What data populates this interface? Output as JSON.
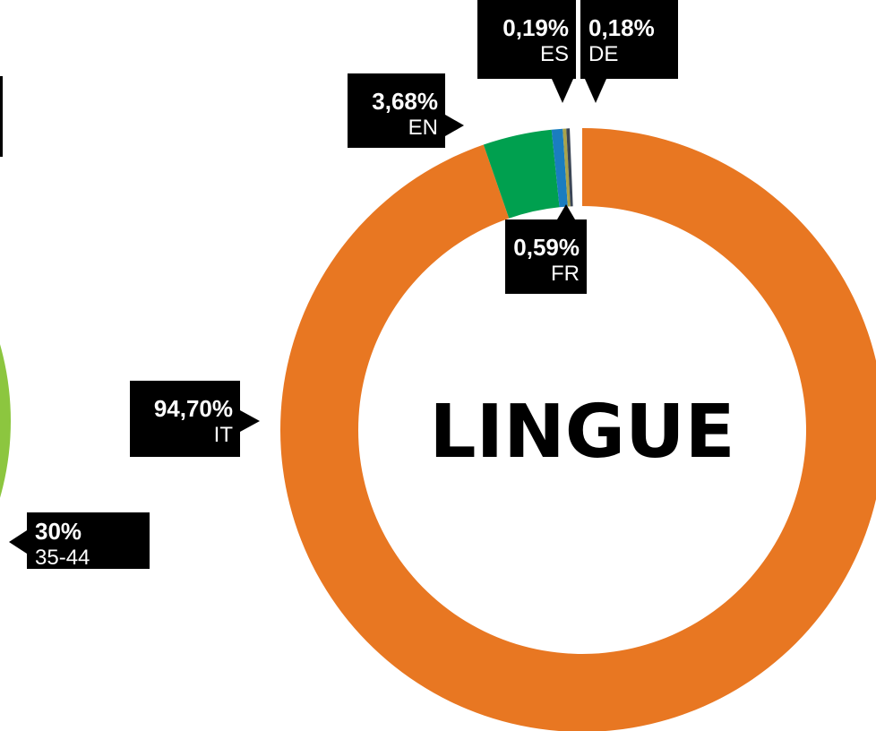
{
  "chart_data": [
    {
      "type": "donut",
      "title": "LINGUE",
      "categories": [
        "IT",
        "EN",
        "FR",
        "ES",
        "DE"
      ],
      "values": [
        94.7,
        3.68,
        0.59,
        0.19,
        0.18
      ],
      "value_labels": [
        "94,70%",
        "3,68%",
        "0,59%",
        "0,19%",
        "0,18%"
      ],
      "colors": [
        "#e87722",
        "#00a04f",
        "#1a7dc0",
        "#a9a34a",
        "#3b4656"
      ]
    },
    {
      "type": "donut",
      "categories": [
        "35-44"
      ],
      "values": [
        30
      ],
      "value_labels": [
        "30%"
      ],
      "colors": [
        "#8cc63f"
      ]
    }
  ]
}
